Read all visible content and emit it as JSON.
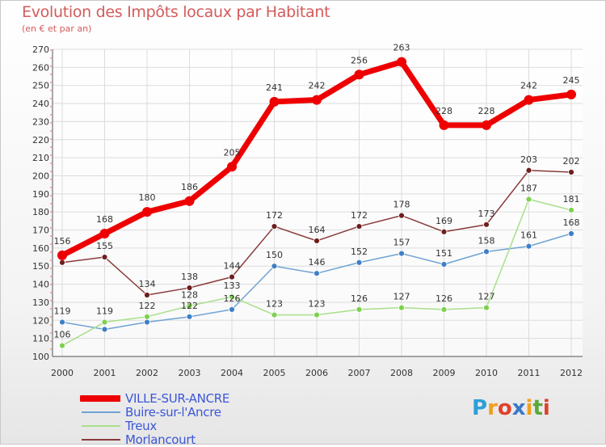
{
  "header": {
    "title": "Evolution des Impôts locaux par Habitant",
    "subtitle": "(en € et par an)"
  },
  "logo": {
    "text": "Proxiti",
    "letters": [
      "P",
      "r",
      "o",
      "x",
      "i",
      "t",
      "i"
    ],
    "colors": [
      "#2e9fd8",
      "#f0a020",
      "#e0402a",
      "#3a78c8",
      "#f0a020",
      "#5aa83a",
      "#e0402a"
    ]
  },
  "chart_data": {
    "type": "line",
    "title": "Evolution des Impôts locaux par Habitant",
    "subtitle": "(en € et par an)",
    "xlabel": "",
    "ylabel": "",
    "ylim": [
      100,
      270
    ],
    "yticks": [
      100,
      110,
      120,
      130,
      140,
      150,
      160,
      170,
      180,
      190,
      200,
      210,
      220,
      230,
      240,
      250,
      260,
      270
    ],
    "grid": true,
    "legend_position": "bottom-left",
    "categories": [
      "2000",
      "2001",
      "2002",
      "2003",
      "2004",
      "2005",
      "2006",
      "2007",
      "2008",
      "2009",
      "2010",
      "2011",
      "2012"
    ],
    "series": [
      {
        "name": "VILLE-SUR-ANCRE",
        "color": "#ee0000",
        "marker": "#ee0000",
        "values": [
          156,
          168,
          180,
          186,
          205,
          241,
          242,
          256,
          263,
          228,
          228,
          242,
          245
        ],
        "labels": [
          "156",
          "168",
          "180",
          "186",
          "205",
          "241",
          "242",
          "256",
          "263",
          "228",
          "228",
          "242",
          "245"
        ]
      },
      {
        "name": "Buire-sur-l'Ancre",
        "color": "#6fa3d4",
        "marker": "#3f7fc6",
        "values": [
          119,
          115,
          119,
          122,
          126,
          150,
          146,
          152,
          157,
          151,
          158,
          161,
          168
        ],
        "labels": [
          "119",
          "",
          "",
          "122",
          "126",
          "150",
          "146",
          "152",
          "157",
          "151",
          "158",
          "161",
          "168"
        ]
      },
      {
        "name": "Treux",
        "color": "#a8e08a",
        "marker": "#7ed04e",
        "values": [
          106,
          119,
          122,
          128,
          133,
          123,
          123,
          126,
          127,
          126,
          127,
          187,
          181
        ],
        "labels": [
          "106",
          "119",
          "122",
          "128",
          "133",
          "123",
          "123",
          "126",
          "127",
          "126",
          "127",
          "187",
          "181"
        ]
      },
      {
        "name": "Morlancourt",
        "color": "#8a3a3a",
        "marker": "#6e1e1e",
        "values": [
          152,
          155,
          134,
          138,
          144,
          172,
          164,
          172,
          178,
          169,
          173,
          203,
          202
        ],
        "labels": [
          "",
          "155",
          "134",
          "138",
          "144",
          "172",
          "164",
          "172",
          "178",
          "169",
          "173",
          "203",
          "202"
        ]
      }
    ]
  }
}
